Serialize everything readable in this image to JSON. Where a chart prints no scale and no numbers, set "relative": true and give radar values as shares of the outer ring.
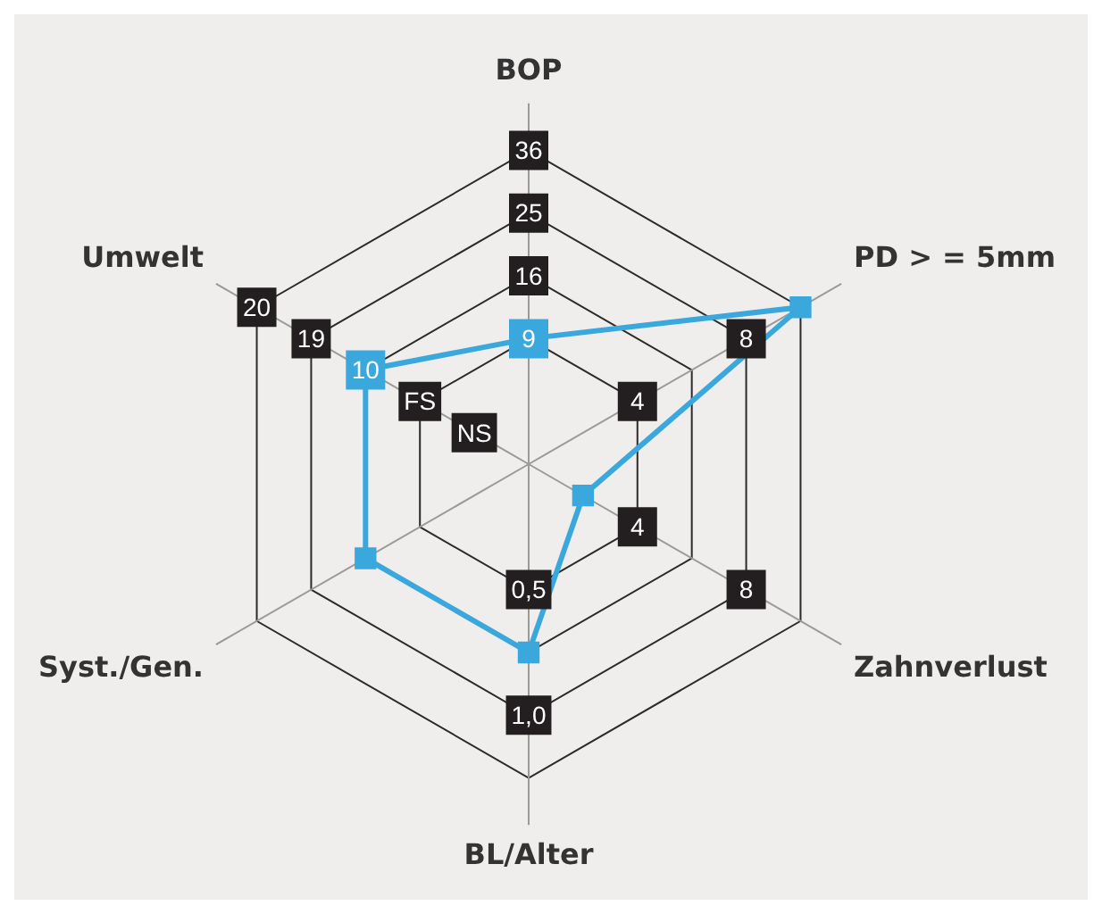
{
  "chart_data": {
    "type": "radar",
    "relative": true,
    "categories": [
      "BOP",
      "PD > = 5mm",
      "Zahnverlust",
      "BL/Alter",
      "Syst./Gen.",
      "Umwelt"
    ],
    "series": [
      {
        "color": "#3aa8dc",
        "values": [
          0.4,
          1,
          0.2,
          0.6,
          0.6,
          0.6
        ]
      }
    ],
    "marker": "square",
    "legend": false,
    "grid": true,
    "annotations": [
      {
        "text": "9",
        "x": "BOP"
      },
      {
        "text": "16",
        "x": "BOP"
      },
      {
        "text": "25",
        "x": "BOP"
      },
      {
        "text": "36",
        "x": "BOP"
      },
      {
        "text": "4",
        "x": "PD > = 5mm"
      },
      {
        "text": "8",
        "x": "PD > = 5mm"
      },
      {
        "text": "4",
        "x": "Zahnverlust"
      },
      {
        "text": "8",
        "x": "Zahnverlust"
      },
      {
        "text": "0,5",
        "x": "BL/Alter"
      },
      {
        "text": "1,0",
        "x": "BL/Alter"
      },
      {
        "text": "NS",
        "x": "Umwelt"
      },
      {
        "text": "FS",
        "x": "Umwelt"
      },
      {
        "text": "10",
        "x": "Umwelt"
      },
      {
        "text": "19",
        "x": "Umwelt"
      },
      {
        "text": "20",
        "x": "Umwelt"
      }
    ]
  }
}
